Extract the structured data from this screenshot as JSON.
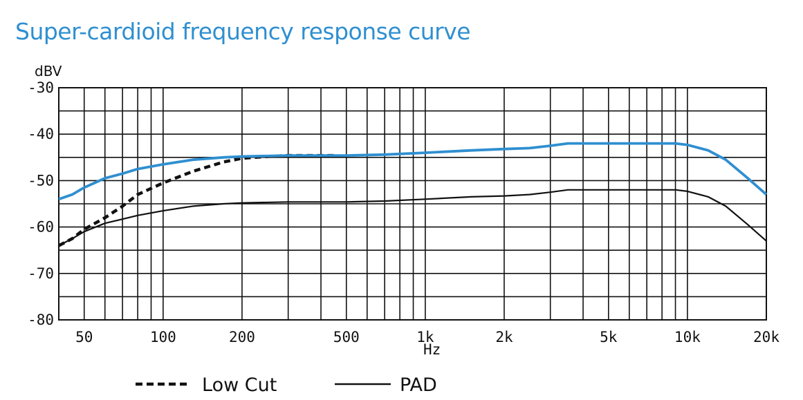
{
  "chart_data": {
    "type": "line",
    "title": "Super-cardioid frequency response curve",
    "xlabel": "Hz",
    "ylabel": "dBV",
    "xscale": "log",
    "xlim": [
      40,
      20000
    ],
    "ylim": [
      -80,
      -30
    ],
    "grid": true,
    "legend": "bottom",
    "x_ticks": [
      {
        "value": 50,
        "label": "50"
      },
      {
        "value": 100,
        "label": "100"
      },
      {
        "value": 200,
        "label": "200"
      },
      {
        "value": 500,
        "label": "500"
      },
      {
        "value": 1000,
        "label": "1k"
      },
      {
        "value": 2000,
        "label": "2k"
      },
      {
        "value": 5000,
        "label": "5k"
      },
      {
        "value": 10000,
        "label": "10k"
      },
      {
        "value": 20000,
        "label": "20k"
      }
    ],
    "y_ticks": [
      {
        "value": -30,
        "label": "-30"
      },
      {
        "value": -40,
        "label": "-40"
      },
      {
        "value": -50,
        "label": "-50"
      },
      {
        "value": -60,
        "label": "-60"
      },
      {
        "value": -70,
        "label": "-70"
      },
      {
        "value": -80,
        "label": "-80"
      }
    ],
    "series": [
      {
        "name": "",
        "color": "#2f8fd0",
        "style": "solid",
        "points": [
          [
            40,
            -54
          ],
          [
            45,
            -53
          ],
          [
            50,
            -51.5
          ],
          [
            60,
            -49.5
          ],
          [
            70,
            -48.5
          ],
          [
            80,
            -47.5
          ],
          [
            100,
            -46.5
          ],
          [
            130,
            -45.5
          ],
          [
            170,
            -45
          ],
          [
            200,
            -44.8
          ],
          [
            300,
            -44.6
          ],
          [
            500,
            -44.6
          ],
          [
            700,
            -44.4
          ],
          [
            1000,
            -44
          ],
          [
            1500,
            -43.5
          ],
          [
            2000,
            -43.2
          ],
          [
            2500,
            -43
          ],
          [
            3000,
            -42.5
          ],
          [
            3500,
            -42
          ],
          [
            5000,
            -42
          ],
          [
            7000,
            -42
          ],
          [
            9000,
            -42
          ],
          [
            10000,
            -42.3
          ],
          [
            12000,
            -43.5
          ],
          [
            14000,
            -45.5
          ],
          [
            17000,
            -49.5
          ],
          [
            20000,
            -53
          ]
        ]
      },
      {
        "name": "Low Cut",
        "color": "#111111",
        "style": "dashed",
        "points": [
          [
            40,
            -64
          ],
          [
            45,
            -62.5
          ],
          [
            50,
            -60.5
          ],
          [
            60,
            -58
          ],
          [
            70,
            -55.5
          ],
          [
            80,
            -53
          ],
          [
            100,
            -50.5
          ],
          [
            130,
            -48
          ],
          [
            170,
            -46
          ],
          [
            200,
            -45.2
          ],
          [
            250,
            -44.8
          ],
          [
            300,
            -44.6
          ],
          [
            400,
            -44.6
          ],
          [
            450,
            -44.6
          ]
        ]
      },
      {
        "name": "PAD",
        "color": "#111111",
        "style": "solid",
        "points": [
          [
            40,
            -64
          ],
          [
            45,
            -62.5
          ],
          [
            50,
            -61
          ],
          [
            60,
            -59.2
          ],
          [
            70,
            -58.3
          ],
          [
            80,
            -57.5
          ],
          [
            100,
            -56.5
          ],
          [
            130,
            -55.5
          ],
          [
            170,
            -55
          ],
          [
            200,
            -54.8
          ],
          [
            300,
            -54.6
          ],
          [
            500,
            -54.6
          ],
          [
            700,
            -54.4
          ],
          [
            1000,
            -54
          ],
          [
            1500,
            -53.5
          ],
          [
            2000,
            -53.3
          ],
          [
            2500,
            -53
          ],
          [
            3000,
            -52.5
          ],
          [
            3500,
            -52
          ],
          [
            5000,
            -52
          ],
          [
            7000,
            -52
          ],
          [
            9000,
            -52
          ],
          [
            10000,
            -52.3
          ],
          [
            12000,
            -53.5
          ],
          [
            14000,
            -55.5
          ],
          [
            17000,
            -59.5
          ],
          [
            20000,
            -63
          ]
        ]
      }
    ]
  },
  "legend": {
    "low_cut_label": "Low Cut",
    "pad_label": "PAD"
  }
}
